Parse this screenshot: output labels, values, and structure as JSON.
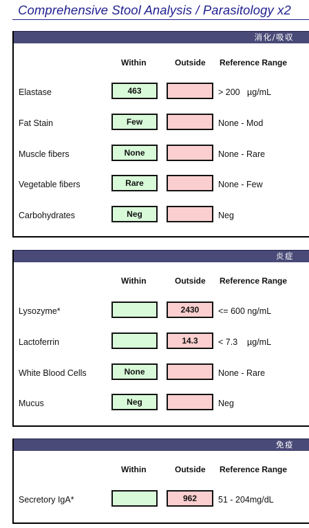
{
  "page": {
    "title": "Comprehensive Stool Analysis / Parasitology x2"
  },
  "headers": {
    "within": "Within",
    "outside": "Outside",
    "reference": "Reference Range"
  },
  "sections": [
    {
      "heading": "消化/吸収",
      "rows": [
        {
          "label": "Elastase",
          "within": "463",
          "outside": "",
          "reference": "> 200   µg/mL"
        },
        {
          "label": "Fat Stain",
          "within": "Few",
          "outside": "",
          "reference": "None - Mod"
        },
        {
          "label": "Muscle fibers",
          "within": "None",
          "outside": "",
          "reference": "None - Rare"
        },
        {
          "label": "Vegetable fibers",
          "within": "Rare",
          "outside": "",
          "reference": "None - Few"
        },
        {
          "label": "Carbohydrates",
          "within": "Neg",
          "outside": "",
          "reference": "Neg"
        }
      ]
    },
    {
      "heading": "炎症",
      "rows": [
        {
          "label": "Lysozyme*",
          "within": "",
          "outside": "2430",
          "reference": "<= 600 ng/mL"
        },
        {
          "label": "Lactoferrin",
          "within": "",
          "outside": "14.3",
          "reference": "< 7.3    µg/mL"
        },
        {
          "label": "White Blood Cells",
          "within": "None",
          "outside": "",
          "reference": "None - Rare"
        },
        {
          "label": "Mucus",
          "within": "Neg",
          "outside": "",
          "reference": "Neg"
        }
      ]
    },
    {
      "heading": "免疫",
      "rows": [
        {
          "label": "Secretory IgA*",
          "within": "",
          "outside": "962",
          "reference": "51 - 204mg/dL"
        }
      ]
    }
  ],
  "colors": {
    "title": "#1f1f8f",
    "section_bar": "#4a4a78",
    "within_fill": "#d9fad9",
    "outside_fill": "#fbcfcf"
  }
}
